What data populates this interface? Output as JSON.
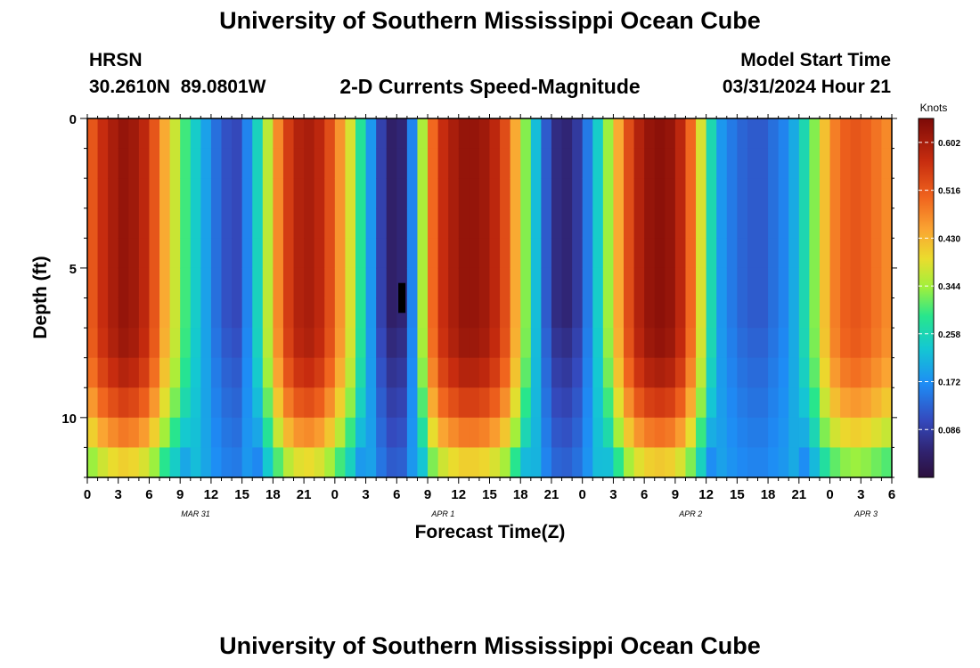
{
  "page": {
    "title_top": "University of Southern Mississippi Ocean Cube",
    "title_bottom": "University of Southern Mississippi Ocean Cube",
    "station_code": "HRSN",
    "station_coords": "30.2610N  89.0801W",
    "plot_title": "2-D Currents Speed-Magnitude",
    "model_label": "Model Start Time",
    "model_time": "03/31/2024 Hour 21"
  },
  "colorbar": {
    "unit": "Knots",
    "ticks": [
      "0.602",
      "0.516",
      "0.430",
      "0.344",
      "0.258",
      "0.172",
      "0.086"
    ],
    "min": 0.0,
    "max": 0.645
  },
  "chart_data": {
    "type": "heatmap",
    "title": "2-D Currents Speed-Magnitude",
    "xlabel": "Forecast Time(Z)",
    "ylabel": "Depth (ft)",
    "xlim": [
      0,
      78
    ],
    "ylim": [
      12,
      0
    ],
    "x_tick_labels": [
      "0",
      "3",
      "6",
      "9",
      "12",
      "15",
      "18",
      "21",
      "0",
      "3",
      "6",
      "9",
      "12",
      "15",
      "18",
      "21",
      "0",
      "3",
      "6",
      "9",
      "12",
      "15",
      "18",
      "21",
      "0",
      "3",
      "6"
    ],
    "y_tick_labels": [
      "0",
      "5",
      "10"
    ],
    "y_tick_values": [
      0,
      5,
      10
    ],
    "date_labels": [
      {
        "label": "MAR 31",
        "hour": 10.5
      },
      {
        "label": "APR 1",
        "hour": 34.5
      },
      {
        "label": "APR 2",
        "hour": 58.5
      },
      {
        "label": "APR 3",
        "hour": 75.5
      }
    ],
    "surface_speed_by_hour": [
      0.52,
      0.57,
      0.6,
      0.62,
      0.61,
      0.58,
      0.52,
      0.44,
      0.37,
      0.3,
      0.24,
      0.19,
      0.14,
      0.11,
      0.1,
      0.16,
      0.25,
      0.36,
      0.47,
      0.55,
      0.59,
      0.6,
      0.58,
      0.53,
      0.46,
      0.38,
      0.28,
      0.18,
      0.09,
      0.04,
      0.05,
      0.16,
      0.35,
      0.5,
      0.57,
      0.6,
      0.62,
      0.62,
      0.61,
      0.58,
      0.53,
      0.44,
      0.33,
      0.22,
      0.12,
      0.06,
      0.05,
      0.08,
      0.15,
      0.24,
      0.34,
      0.44,
      0.53,
      0.59,
      0.62,
      0.63,
      0.62,
      0.58,
      0.5,
      0.38,
      0.26,
      0.18,
      0.15,
      0.13,
      0.12,
      0.12,
      0.14,
      0.16,
      0.2,
      0.26,
      0.33,
      0.42,
      0.48,
      0.51,
      0.52,
      0.51,
      0.49,
      0.47
    ],
    "colorbar_ticks": [
      0.602,
      0.516,
      0.43,
      0.344,
      0.258,
      0.172,
      0.086
    ],
    "units": "Knots",
    "depth_profile_note": "speed decreases toward bottom (~12 ft); missing data marker near hour 6 (APR 1), depth 5.5-6.5 ft",
    "missing_cell": {
      "hour": 30.5,
      "depth_from": 5.5,
      "depth_to": 6.5
    }
  }
}
